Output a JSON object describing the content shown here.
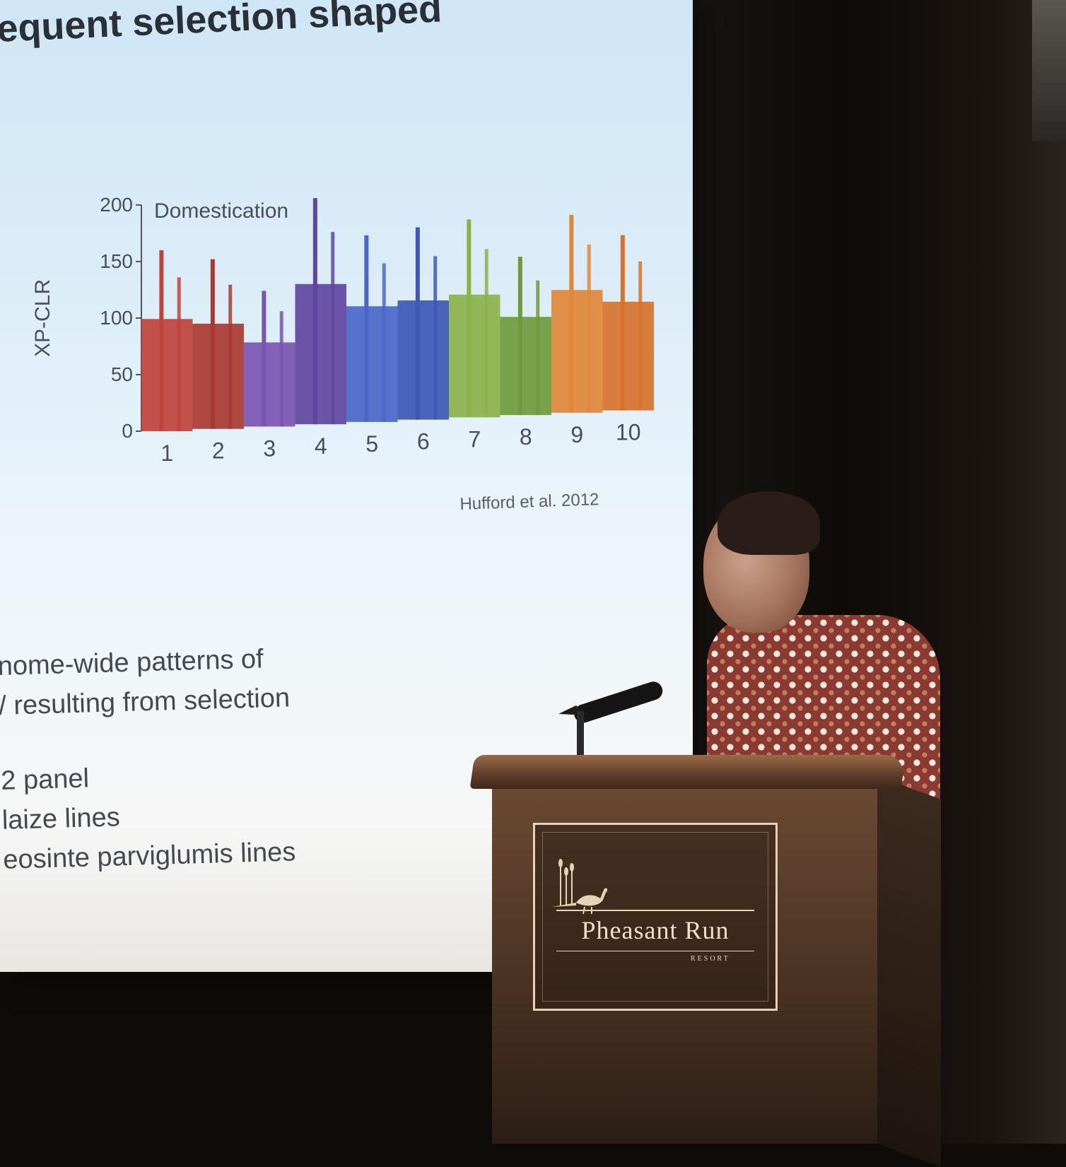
{
  "slide": {
    "title_fragment": "equent selection shaped",
    "chart_data": {
      "type": "bar",
      "title": "Domestication",
      "ylabel": "XP-CLR",
      "xlabel": "",
      "ylim": [
        0,
        200
      ],
      "yticks": [
        "0",
        "50",
        "100",
        "150",
        "200"
      ],
      "categories": [
        "1",
        "2",
        "3",
        "4",
        "5",
        "6",
        "7",
        "8",
        "9",
        "10"
      ],
      "values": [
        160,
        150,
        120,
        200,
        165,
        170,
        175,
        140,
        175,
        155
      ],
      "colors": [
        "#c0433c",
        "#a83a33",
        "#7a55b0",
        "#5f47a0",
        "#4a67c8",
        "#3d58b5",
        "#8bb24a",
        "#6f9a3c",
        "#e0873a",
        "#d6722c"
      ]
    },
    "citation": "Hufford et al. 2012",
    "bullets": [
      "nome-wide patterns of",
      "/ resulting from selection",
      "2 panel",
      "laize lines",
      "eosinte parviglumis lines"
    ]
  },
  "podium": {
    "brand_name": "Pheasant Run",
    "brand_sub": "RESORT",
    "logo_icon": "pheasant-icon"
  }
}
